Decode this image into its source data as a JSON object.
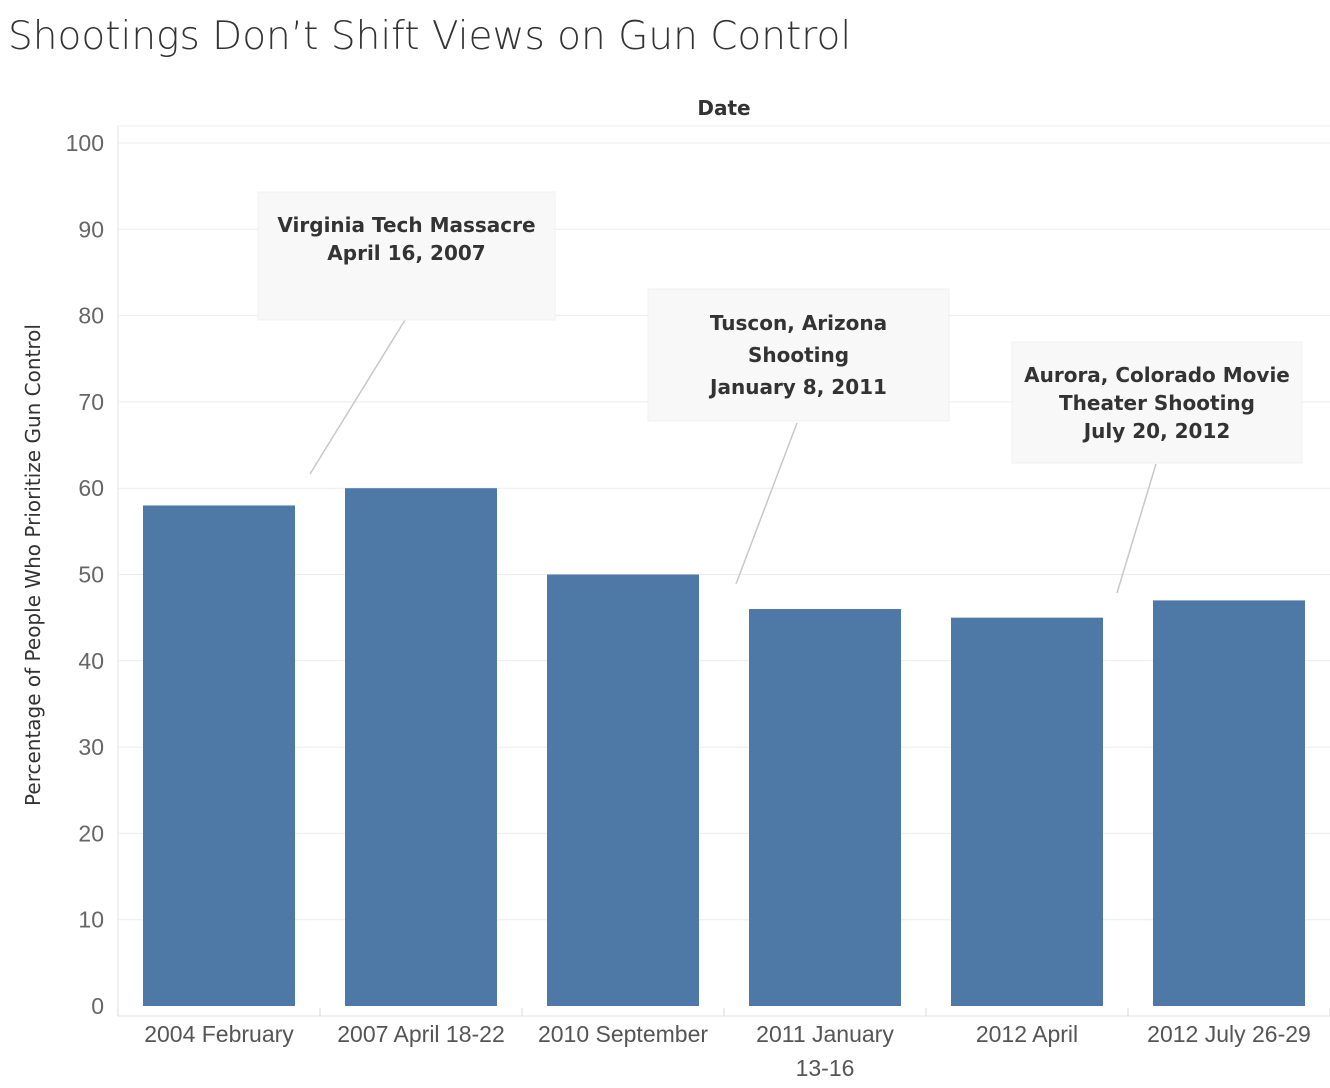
{
  "title": "Shootings Don’t Shift Views on Gun Control",
  "chart_data": {
    "type": "bar",
    "header": "Date",
    "ylabel": "Percentage of People Who Prioritize Gun Control",
    "xlabel": "",
    "ylim": [
      0,
      100
    ],
    "yticks": [
      0,
      10,
      20,
      30,
      40,
      50,
      60,
      70,
      80,
      90,
      100
    ],
    "grid": true,
    "bar_color": "#4e79a7",
    "categories": [
      "2004 February",
      "2007 April 18-22",
      "2010 September",
      "2011 January 13-16",
      "2012 April",
      "2012 July 26-29"
    ],
    "category_lines": [
      [
        "2004 February"
      ],
      [
        "2007 April 18-22"
      ],
      [
        "2010 September"
      ],
      [
        "2011 January",
        "13-16"
      ],
      [
        "2012 April"
      ],
      [
        "2012 July 26-29"
      ]
    ],
    "values": [
      58,
      60,
      50,
      46,
      45,
      47
    ],
    "annotations": [
      {
        "lines": [
          "Virginia Tech Massacre",
          "April 16, 2007"
        ],
        "between": [
          0,
          1
        ]
      },
      {
        "lines": [
          "Tuscon, Arizona",
          "Shooting",
          "January 8, 2011"
        ],
        "between": [
          2,
          3
        ]
      },
      {
        "lines": [
          "Aurora, Colorado Movie",
          "Theater Shooting",
          "July 20, 2012"
        ],
        "between": [
          4,
          5
        ]
      }
    ]
  }
}
